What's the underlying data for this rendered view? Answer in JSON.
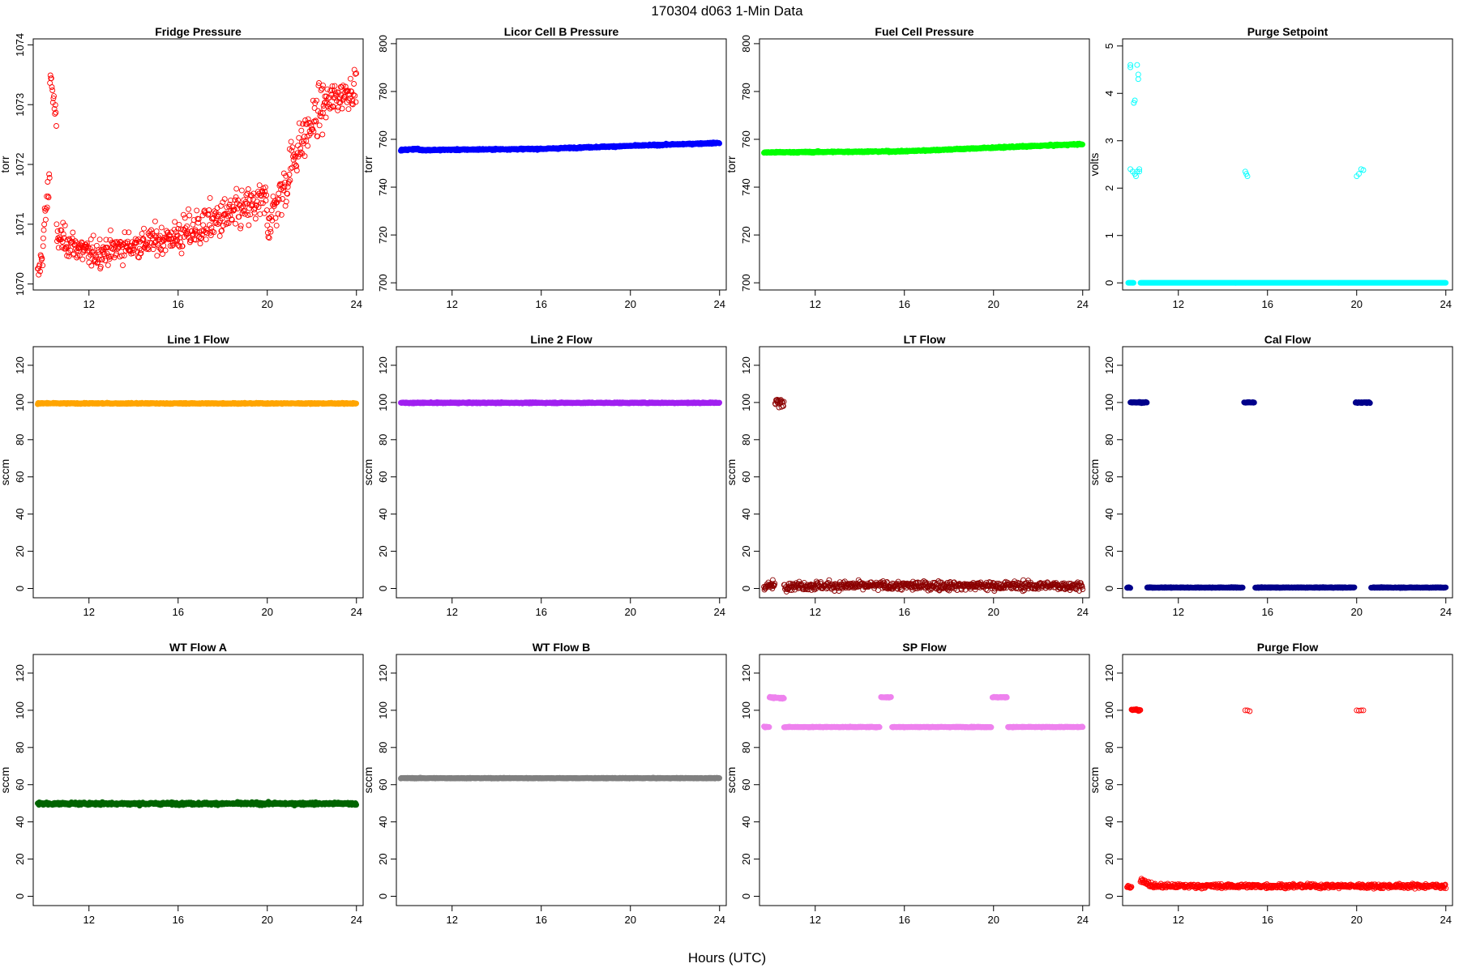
{
  "figure": {
    "title": "170304    d063    1-Min Data",
    "xlabel": "Hours (UTC)"
  },
  "chart_data": [
    {
      "type": "scatter",
      "title": "Fridge Pressure",
      "ylabel": "torr",
      "xlim": [
        9.5,
        24.3
      ],
      "ylim": [
        1069.9,
        1074.1
      ],
      "xticks": [
        12,
        16,
        20,
        24
      ],
      "yticks": [
        1070,
        1071,
        1072,
        1073,
        1074
      ],
      "color": "#ff0000",
      "marker": "open",
      "segments": [
        {
          "x0": 9.7,
          "x1": 9.95,
          "y0": 1070.1,
          "y1": 1070.6,
          "noise": 0.25
        },
        {
          "x0": 9.95,
          "x1": 10.25,
          "y0": 1070.8,
          "y1": 1071.8,
          "noise": 0.35
        },
        {
          "x0": 10.25,
          "x1": 10.55,
          "y0": 1073.6,
          "y1": 1072.6,
          "noise": 0.25
        },
        {
          "x0": 10.55,
          "x1": 12.0,
          "y0": 1070.8,
          "y1": 1070.5,
          "noise": 0.25
        },
        {
          "x0": 12.0,
          "x1": 16.0,
          "y0": 1070.5,
          "y1": 1070.8,
          "noise": 0.25
        },
        {
          "x0": 16.0,
          "x1": 20.0,
          "y0": 1070.8,
          "y1": 1071.4,
          "noise": 0.35
        },
        {
          "x0": 20.0,
          "x1": 21.0,
          "y0": 1071.0,
          "y1": 1071.8,
          "noise": 0.4
        },
        {
          "x0": 21.0,
          "x1": 22.5,
          "y0": 1072.0,
          "y1": 1073.0,
          "noise": 0.4
        },
        {
          "x0": 22.5,
          "x1": 24.0,
          "y0": 1073.0,
          "y1": 1073.3,
          "noise": 0.3
        }
      ]
    },
    {
      "type": "scatter",
      "title": "Licor Cell B Pressure",
      "ylabel": "torr",
      "xlim": [
        9.5,
        24.3
      ],
      "ylim": [
        697,
        802
      ],
      "xticks": [
        12,
        16,
        20,
        24
      ],
      "yticks": [
        700,
        720,
        740,
        760,
        780,
        800
      ],
      "color": "#0000ff",
      "marker": "filled",
      "segments": [
        {
          "x0": 9.7,
          "x1": 10.5,
          "y0": 755.5,
          "y1": 756.0,
          "noise": 0.3
        },
        {
          "x0": 10.5,
          "x1": 16.0,
          "y0": 755.5,
          "y1": 756.0,
          "noise": 0.3
        },
        {
          "x0": 16.0,
          "x1": 24.0,
          "y0": 756.0,
          "y1": 758.5,
          "noise": 0.3
        }
      ]
    },
    {
      "type": "scatter",
      "title": "Fuel Cell Pressure",
      "ylabel": "torr",
      "xlim": [
        9.5,
        24.3
      ],
      "ylim": [
        697,
        802
      ],
      "xticks": [
        12,
        16,
        20,
        24
      ],
      "yticks": [
        700,
        720,
        740,
        760,
        780,
        800
      ],
      "color": "#00ff00",
      "marker": "filled",
      "segments": [
        {
          "x0": 9.7,
          "x1": 16.0,
          "y0": 754.5,
          "y1": 755.0,
          "noise": 0.3
        },
        {
          "x0": 16.0,
          "x1": 24.0,
          "y0": 755.0,
          "y1": 758.0,
          "noise": 0.3
        }
      ]
    },
    {
      "type": "scatter",
      "title": "Purge Setpoint",
      "ylabel": "volts",
      "xlim": [
        9.5,
        24.3
      ],
      "ylim": [
        -0.15,
        5.15
      ],
      "xticks": [
        12,
        16,
        20,
        24
      ],
      "yticks": [
        0,
        1,
        2,
        3,
        4,
        5
      ],
      "color": "#00ffff",
      "marker": "open",
      "segments": [
        {
          "x0": 9.75,
          "x1": 10.0,
          "y0": 0,
          "y1": 0,
          "noise": 0
        },
        {
          "x0": 10.3,
          "x1": 24.0,
          "y0": 0,
          "y1": 0,
          "noise": 0,
          "step": 0.02
        }
      ],
      "points": [
        [
          9.85,
          4.55
        ],
        [
          9.85,
          4.6
        ],
        [
          10.0,
          3.8
        ],
        [
          10.05,
          3.85
        ],
        [
          10.15,
          4.6
        ],
        [
          10.2,
          4.4
        ],
        [
          10.2,
          4.3
        ],
        [
          9.85,
          2.4
        ],
        [
          9.95,
          2.35
        ],
        [
          10.05,
          2.3
        ],
        [
          10.1,
          2.25
        ],
        [
          10.15,
          2.35
        ],
        [
          10.25,
          2.4
        ],
        [
          10.25,
          2.35
        ],
        [
          15.0,
          2.35
        ],
        [
          15.05,
          2.3
        ],
        [
          15.1,
          2.25
        ],
        [
          20.0,
          2.25
        ],
        [
          20.1,
          2.3
        ],
        [
          20.2,
          2.4
        ],
        [
          20.3,
          2.38
        ]
      ]
    },
    {
      "type": "scatter",
      "title": "Line 1 Flow",
      "ylabel": "sccm",
      "xlim": [
        9.5,
        24.3
      ],
      "ylim": [
        -5,
        130
      ],
      "xticks": [
        12,
        16,
        20,
        24
      ],
      "yticks": [
        0,
        20,
        40,
        60,
        80,
        100,
        120
      ],
      "color": "#ffa500",
      "marker": "filled",
      "segments": [
        {
          "x0": 9.7,
          "x1": 24.0,
          "y0": 99.5,
          "y1": 99.5,
          "noise": 0.3
        }
      ]
    },
    {
      "type": "scatter",
      "title": "Line 2 Flow",
      "ylabel": "sccm",
      "xlim": [
        9.5,
        24.3
      ],
      "ylim": [
        -5,
        130
      ],
      "xticks": [
        12,
        16,
        20,
        24
      ],
      "yticks": [
        0,
        20,
        40,
        60,
        80,
        100,
        120
      ],
      "color": "#a020f0",
      "marker": "filled",
      "segments": [
        {
          "x0": 9.7,
          "x1": 24.0,
          "y0": 99.8,
          "y1": 99.8,
          "noise": 0.3
        }
      ]
    },
    {
      "type": "scatter",
      "title": "LT Flow",
      "ylabel": "sccm",
      "xlim": [
        9.5,
        24.3
      ],
      "ylim": [
        -5,
        130
      ],
      "xticks": [
        12,
        16,
        20,
        24
      ],
      "yticks": [
        0,
        20,
        40,
        60,
        80,
        100,
        120
      ],
      "color": "#8b0000",
      "marker": "open",
      "segments": [
        {
          "x0": 9.7,
          "x1": 10.2,
          "y0": 1.5,
          "y1": 1.5,
          "noise": 2.5
        },
        {
          "x0": 10.2,
          "x1": 10.6,
          "y0": 100,
          "y1": 100,
          "noise": 2.5
        },
        {
          "x0": 10.6,
          "x1": 24.0,
          "y0": 1.5,
          "y1": 1.5,
          "noise": 2.5
        }
      ]
    },
    {
      "type": "scatter",
      "title": "Cal Flow",
      "ylabel": "sccm",
      "xlim": [
        9.5,
        24.3
      ],
      "ylim": [
        -5,
        130
      ],
      "xticks": [
        12,
        16,
        20,
        24
      ],
      "yticks": [
        0,
        20,
        40,
        60,
        80,
        100,
        120
      ],
      "color": "#00008b",
      "marker": "filled",
      "segments": [
        {
          "x0": 9.7,
          "x1": 9.85,
          "y0": 0.5,
          "y1": 0.5,
          "noise": 0.2
        },
        {
          "x0": 9.85,
          "x1": 10.6,
          "y0": 100,
          "y1": 100,
          "noise": 0.3
        },
        {
          "x0": 10.6,
          "x1": 14.9,
          "y0": 0.5,
          "y1": 0.5,
          "noise": 0.2
        },
        {
          "x0": 14.95,
          "x1": 15.4,
          "y0": 100,
          "y1": 100,
          "noise": 0.3
        },
        {
          "x0": 15.45,
          "x1": 19.9,
          "y0": 0.5,
          "y1": 0.5,
          "noise": 0.2
        },
        {
          "x0": 19.95,
          "x1": 20.6,
          "y0": 100,
          "y1": 100,
          "noise": 0.3
        },
        {
          "x0": 20.65,
          "x1": 24.0,
          "y0": 0.5,
          "y1": 0.5,
          "noise": 0.2
        }
      ]
    },
    {
      "type": "scatter",
      "title": "WT Flow A",
      "ylabel": "sccm",
      "xlim": [
        9.5,
        24.3
      ],
      "ylim": [
        -5,
        130
      ],
      "xticks": [
        12,
        16,
        20,
        24
      ],
      "yticks": [
        0,
        20,
        40,
        60,
        80,
        100,
        120
      ],
      "color": "#006400",
      "marker": "filled",
      "segments": [
        {
          "x0": 9.7,
          "x1": 24.0,
          "y0": 49.8,
          "y1": 49.8,
          "noise": 0.7
        }
      ]
    },
    {
      "type": "scatter",
      "title": "WT Flow B",
      "ylabel": "sccm",
      "xlim": [
        9.5,
        24.3
      ],
      "ylim": [
        -5,
        130
      ],
      "xticks": [
        12,
        16,
        20,
        24
      ],
      "yticks": [
        0,
        20,
        40,
        60,
        80,
        100,
        120
      ],
      "color": "#808080",
      "marker": "filled",
      "segments": [
        {
          "x0": 9.7,
          "x1": 24.0,
          "y0": 63.5,
          "y1": 63.5,
          "noise": 0.2
        }
      ]
    },
    {
      "type": "scatter",
      "title": "SP Flow",
      "ylabel": "sccm",
      "xlim": [
        9.5,
        24.3
      ],
      "ylim": [
        -5,
        130
      ],
      "xticks": [
        12,
        16,
        20,
        24
      ],
      "yticks": [
        0,
        20,
        40,
        60,
        80,
        100,
        120
      ],
      "color": "#ee82ee",
      "marker": "filled",
      "segments": [
        {
          "x0": 9.7,
          "x1": 9.95,
          "y0": 91,
          "y1": 91,
          "noise": 0.3
        },
        {
          "x0": 9.95,
          "x1": 10.6,
          "y0": 107,
          "y1": 106.5,
          "noise": 0.4
        },
        {
          "x0": 10.6,
          "x1": 14.9,
          "y0": 91,
          "y1": 91,
          "noise": 0.2
        },
        {
          "x0": 14.95,
          "x1": 15.4,
          "y0": 107,
          "y1": 107,
          "noise": 0.3
        },
        {
          "x0": 15.45,
          "x1": 19.9,
          "y0": 91,
          "y1": 91,
          "noise": 0.2
        },
        {
          "x0": 19.95,
          "x1": 20.6,
          "y0": 107,
          "y1": 107,
          "noise": 0.3
        },
        {
          "x0": 20.65,
          "x1": 24.0,
          "y0": 91,
          "y1": 91,
          "noise": 0.2
        }
      ]
    },
    {
      "type": "scatter",
      "title": "Purge Flow",
      "ylabel": "sccm",
      "xlim": [
        9.5,
        24.3
      ],
      "ylim": [
        -5,
        130
      ],
      "xticks": [
        12,
        16,
        20,
        24
      ],
      "yticks": [
        0,
        20,
        40,
        60,
        80,
        100,
        120
      ],
      "color": "#ff0000",
      "marker": "open",
      "segments": [
        {
          "x0": 9.7,
          "x1": 9.9,
          "y0": 5,
          "y1": 5,
          "noise": 0.8
        },
        {
          "x0": 9.9,
          "x1": 10.3,
          "y0": 100.5,
          "y1": 100,
          "noise": 0.6
        },
        {
          "x0": 10.3,
          "x1": 10.8,
          "y0": 9,
          "y1": 6,
          "noise": 1.5
        },
        {
          "x0": 10.8,
          "x1": 24.0,
          "y0": 5.5,
          "y1": 5.5,
          "noise": 1.2
        }
      ],
      "points": [
        [
          15.0,
          100
        ],
        [
          15.1,
          100
        ],
        [
          15.2,
          99.5
        ],
        [
          20.0,
          100
        ],
        [
          20.1,
          99.8
        ],
        [
          20.2,
          100
        ],
        [
          20.3,
          100
        ]
      ]
    }
  ]
}
